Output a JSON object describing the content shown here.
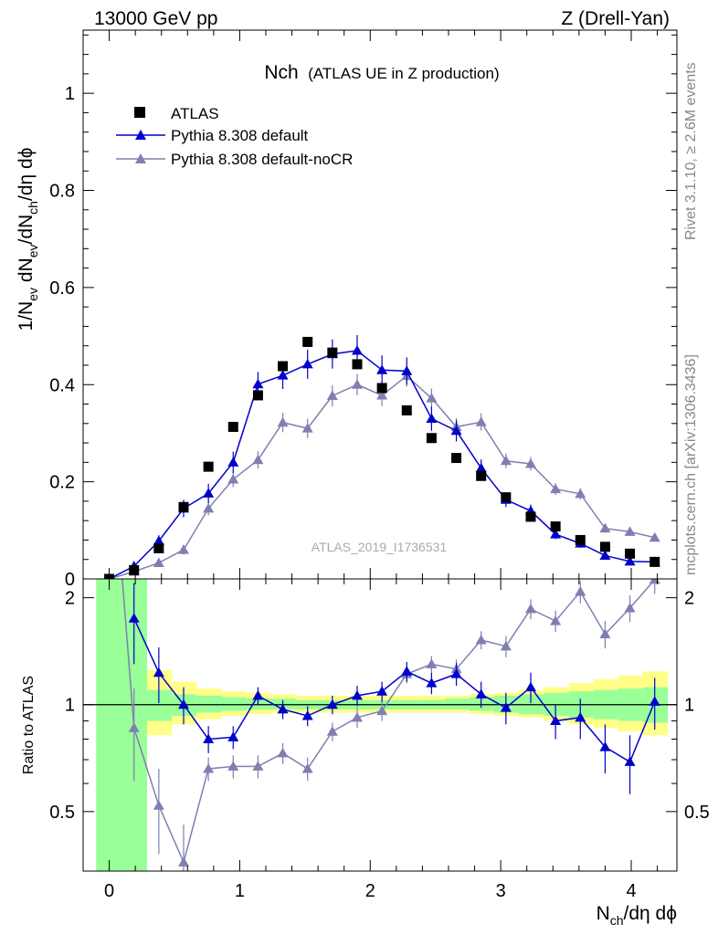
{
  "header": {
    "left": "13000 GeV pp",
    "right": "Z (Drell-Yan)",
    "title_main": "Nch",
    "title_sub": "(ATLAS UE in Z production)",
    "analysis_id": "ATLAS_2019_I1736531",
    "side_rivet": "Rivet 3.1.10, ≥ 2.6M events",
    "side_site": "mcplots.cern.ch [arXiv:1306.3436]"
  },
  "axes": {
    "x_title_parts": [
      "N",
      "ch",
      "/dη dϕ"
    ],
    "y_title_parts": [
      "1/N",
      "ev",
      " dN",
      "ev",
      "/dN",
      "ch",
      "/dη dϕ"
    ],
    "ratio_ylabel": "Ratio to ATLAS",
    "x_ticks": [
      0,
      1,
      2,
      3,
      4
    ],
    "main_y_ticks": [
      {
        "v": 0,
        "label": "0"
      },
      {
        "v": 0.2,
        "label": "0.2"
      },
      {
        "v": 0.4,
        "label": "0.4"
      },
      {
        "v": 0.6,
        "label": "0.6"
      },
      {
        "v": 0.8,
        "label": "0.8"
      },
      {
        "v": 1.0,
        "label": "1"
      }
    ],
    "ratio_y_ticks": [
      {
        "v": 0.5,
        "label": "0.5"
      },
      {
        "v": 1,
        "label": "1"
      },
      {
        "v": 2,
        "label": "2"
      }
    ]
  },
  "chart_data": [
    {
      "type": "scatter",
      "panel": "main",
      "title": "Nch (ATLAS UE in Z production)",
      "xlabel": "Nch/dη dϕ",
      "ylabel": "1/Nev dNev/dNch/dη dϕ",
      "xlim": [
        -0.2,
        4.35
      ],
      "ylim": [
        0,
        1.13
      ],
      "legend_position": "top-left",
      "x": [
        0.0,
        0.19,
        0.38,
        0.57,
        0.76,
        0.95,
        1.14,
        1.33,
        1.52,
        1.71,
        1.9,
        2.09,
        2.28,
        2.47,
        2.66,
        2.85,
        3.04,
        3.23,
        3.42,
        3.61,
        3.8,
        3.99,
        4.18
      ],
      "series": [
        {
          "name": "ATLAS",
          "color": "#000000",
          "marker": "square",
          "values": [
            0.0,
            0.018,
            0.063,
            0.148,
            0.231,
            0.313,
            0.378,
            0.438,
            0.488,
            0.466,
            0.442,
            0.393,
            0.347,
            0.29,
            0.249,
            0.212,
            0.168,
            0.128,
            0.108,
            0.08,
            0.066,
            0.052,
            0.035
          ]
        },
        {
          "name": "Pythia 8.308 default",
          "color": "#0000cc",
          "marker": "triangle",
          "values": [
            0.0,
            0.026,
            0.078,
            0.145,
            0.176,
            0.24,
            0.401,
            0.419,
            0.442,
            0.463,
            0.47,
            0.43,
            0.428,
            0.33,
            0.305,
            0.228,
            0.163,
            0.14,
            0.092,
            0.073,
            0.048,
            0.036,
            0.035
          ],
          "errors": [
            0.0,
            0.01,
            0.012,
            0.018,
            0.02,
            0.022,
            0.025,
            0.028,
            0.03,
            0.03,
            0.032,
            0.03,
            0.028,
            0.025,
            0.022,
            0.018,
            0.015,
            0.013,
            0.01,
            0.009,
            0.007,
            0.006,
            0.006
          ]
        },
        {
          "name": "Pythia 8.308 default-noCR",
          "color": "#7f7fb2",
          "marker": "triangle",
          "values": [
            0.0,
            0.015,
            0.033,
            0.06,
            0.145,
            0.205,
            0.245,
            0.322,
            0.31,
            0.377,
            0.4,
            0.378,
            0.418,
            0.372,
            0.313,
            0.323,
            0.243,
            0.237,
            0.185,
            0.175,
            0.104,
            0.097,
            0.085
          ],
          "errors": [
            0.0,
            0.006,
            0.008,
            0.01,
            0.014,
            0.016,
            0.018,
            0.02,
            0.02,
            0.022,
            0.022,
            0.022,
            0.022,
            0.02,
            0.018,
            0.018,
            0.015,
            0.014,
            0.012,
            0.012,
            0.009,
            0.009,
            0.008
          ]
        }
      ]
    },
    {
      "type": "line",
      "panel": "ratio",
      "ylabel": "Ratio to ATLAS",
      "xlabel": "Nch/dη dϕ",
      "xlim": [
        -0.2,
        4.35
      ],
      "ylim": [
        0.34,
        2.26
      ],
      "y_scale": "log",
      "reference_line": 1,
      "x": [
        0.19,
        0.38,
        0.57,
        0.76,
        0.95,
        1.14,
        1.33,
        1.52,
        1.71,
        1.9,
        2.09,
        2.28,
        2.47,
        2.66,
        2.85,
        3.04,
        3.23,
        3.42,
        3.61,
        3.8,
        3.99,
        4.18
      ],
      "bands": {
        "edges": [
          -0.1,
          0.1,
          0.29,
          0.48,
          0.67,
          0.86,
          1.05,
          1.24,
          1.43,
          1.62,
          1.81,
          2.0,
          2.19,
          2.38,
          2.57,
          2.76,
          2.95,
          3.14,
          3.33,
          3.52,
          3.71,
          3.9,
          4.09,
          4.28
        ],
        "yellow": [
          [
            0.34,
            2.26
          ],
          [
            0.63,
            1.45
          ],
          [
            0.82,
            1.25
          ],
          [
            0.88,
            1.16
          ],
          [
            0.91,
            1.11
          ],
          [
            0.93,
            1.09
          ],
          [
            0.94,
            1.08
          ],
          [
            0.95,
            1.07
          ],
          [
            0.95,
            1.06
          ],
          [
            0.95,
            1.06
          ],
          [
            0.95,
            1.06
          ],
          [
            0.95,
            1.06
          ],
          [
            0.95,
            1.06
          ],
          [
            0.95,
            1.06
          ],
          [
            0.95,
            1.06
          ],
          [
            0.94,
            1.07
          ],
          [
            0.93,
            1.08
          ],
          [
            0.92,
            1.1
          ],
          [
            0.9,
            1.12
          ],
          [
            0.88,
            1.15
          ],
          [
            0.86,
            1.18
          ],
          [
            0.84,
            1.21
          ],
          [
            0.82,
            1.24
          ]
        ],
        "green": [
          [
            0.34,
            2.26
          ],
          [
            0.34,
            2.26
          ],
          [
            0.9,
            1.1
          ],
          [
            0.93,
            1.07
          ],
          [
            0.95,
            1.06
          ],
          [
            0.96,
            1.05
          ],
          [
            0.97,
            1.04
          ],
          [
            0.97,
            1.04
          ],
          [
            0.97,
            1.03
          ],
          [
            0.97,
            1.03
          ],
          [
            0.97,
            1.03
          ],
          [
            0.97,
            1.03
          ],
          [
            0.97,
            1.03
          ],
          [
            0.97,
            1.03
          ],
          [
            0.97,
            1.04
          ],
          [
            0.96,
            1.05
          ],
          [
            0.95,
            1.06
          ],
          [
            0.94,
            1.07
          ],
          [
            0.93,
            1.08
          ],
          [
            0.92,
            1.09
          ],
          [
            0.91,
            1.1
          ],
          [
            0.9,
            1.11
          ],
          [
            0.89,
            1.12
          ]
        ],
        "colors": {
          "yellow": "#ffff88",
          "green": "#99ff99"
        }
      },
      "series": [
        {
          "name": "Pythia 8.308 default",
          "color": "#0000cc",
          "values": [
            1.75,
            1.23,
            1.0,
            0.8,
            0.81,
            1.06,
            0.97,
            0.93,
            1.0,
            1.06,
            1.09,
            1.24,
            1.15,
            1.22,
            1.07,
            0.98,
            1.12,
            0.9,
            0.92,
            0.76,
            0.69,
            1.02
          ],
          "errors": [
            0.45,
            0.22,
            0.12,
            0.07,
            0.06,
            0.06,
            0.06,
            0.06,
            0.06,
            0.07,
            0.07,
            0.08,
            0.08,
            0.09,
            0.09,
            0.1,
            0.11,
            0.1,
            0.12,
            0.12,
            0.13,
            0.17
          ]
        },
        {
          "name": "Pythia 8.308 default-noCR",
          "color": "#7f7fb2",
          "values": [
            0.86,
            0.52,
            0.36,
            0.66,
            0.67,
            0.67,
            0.73,
            0.66,
            0.84,
            0.92,
            0.96,
            1.22,
            1.3,
            1.26,
            1.52,
            1.46,
            1.86,
            1.72,
            2.08,
            1.58,
            1.87,
            2.25
          ],
          "errors": [
            0.25,
            0.14,
            0.1,
            0.05,
            0.05,
            0.05,
            0.05,
            0.05,
            0.05,
            0.06,
            0.06,
            0.07,
            0.07,
            0.08,
            0.09,
            0.1,
            0.12,
            0.12,
            0.15,
            0.14,
            0.16,
            0.2
          ]
        }
      ]
    }
  ]
}
